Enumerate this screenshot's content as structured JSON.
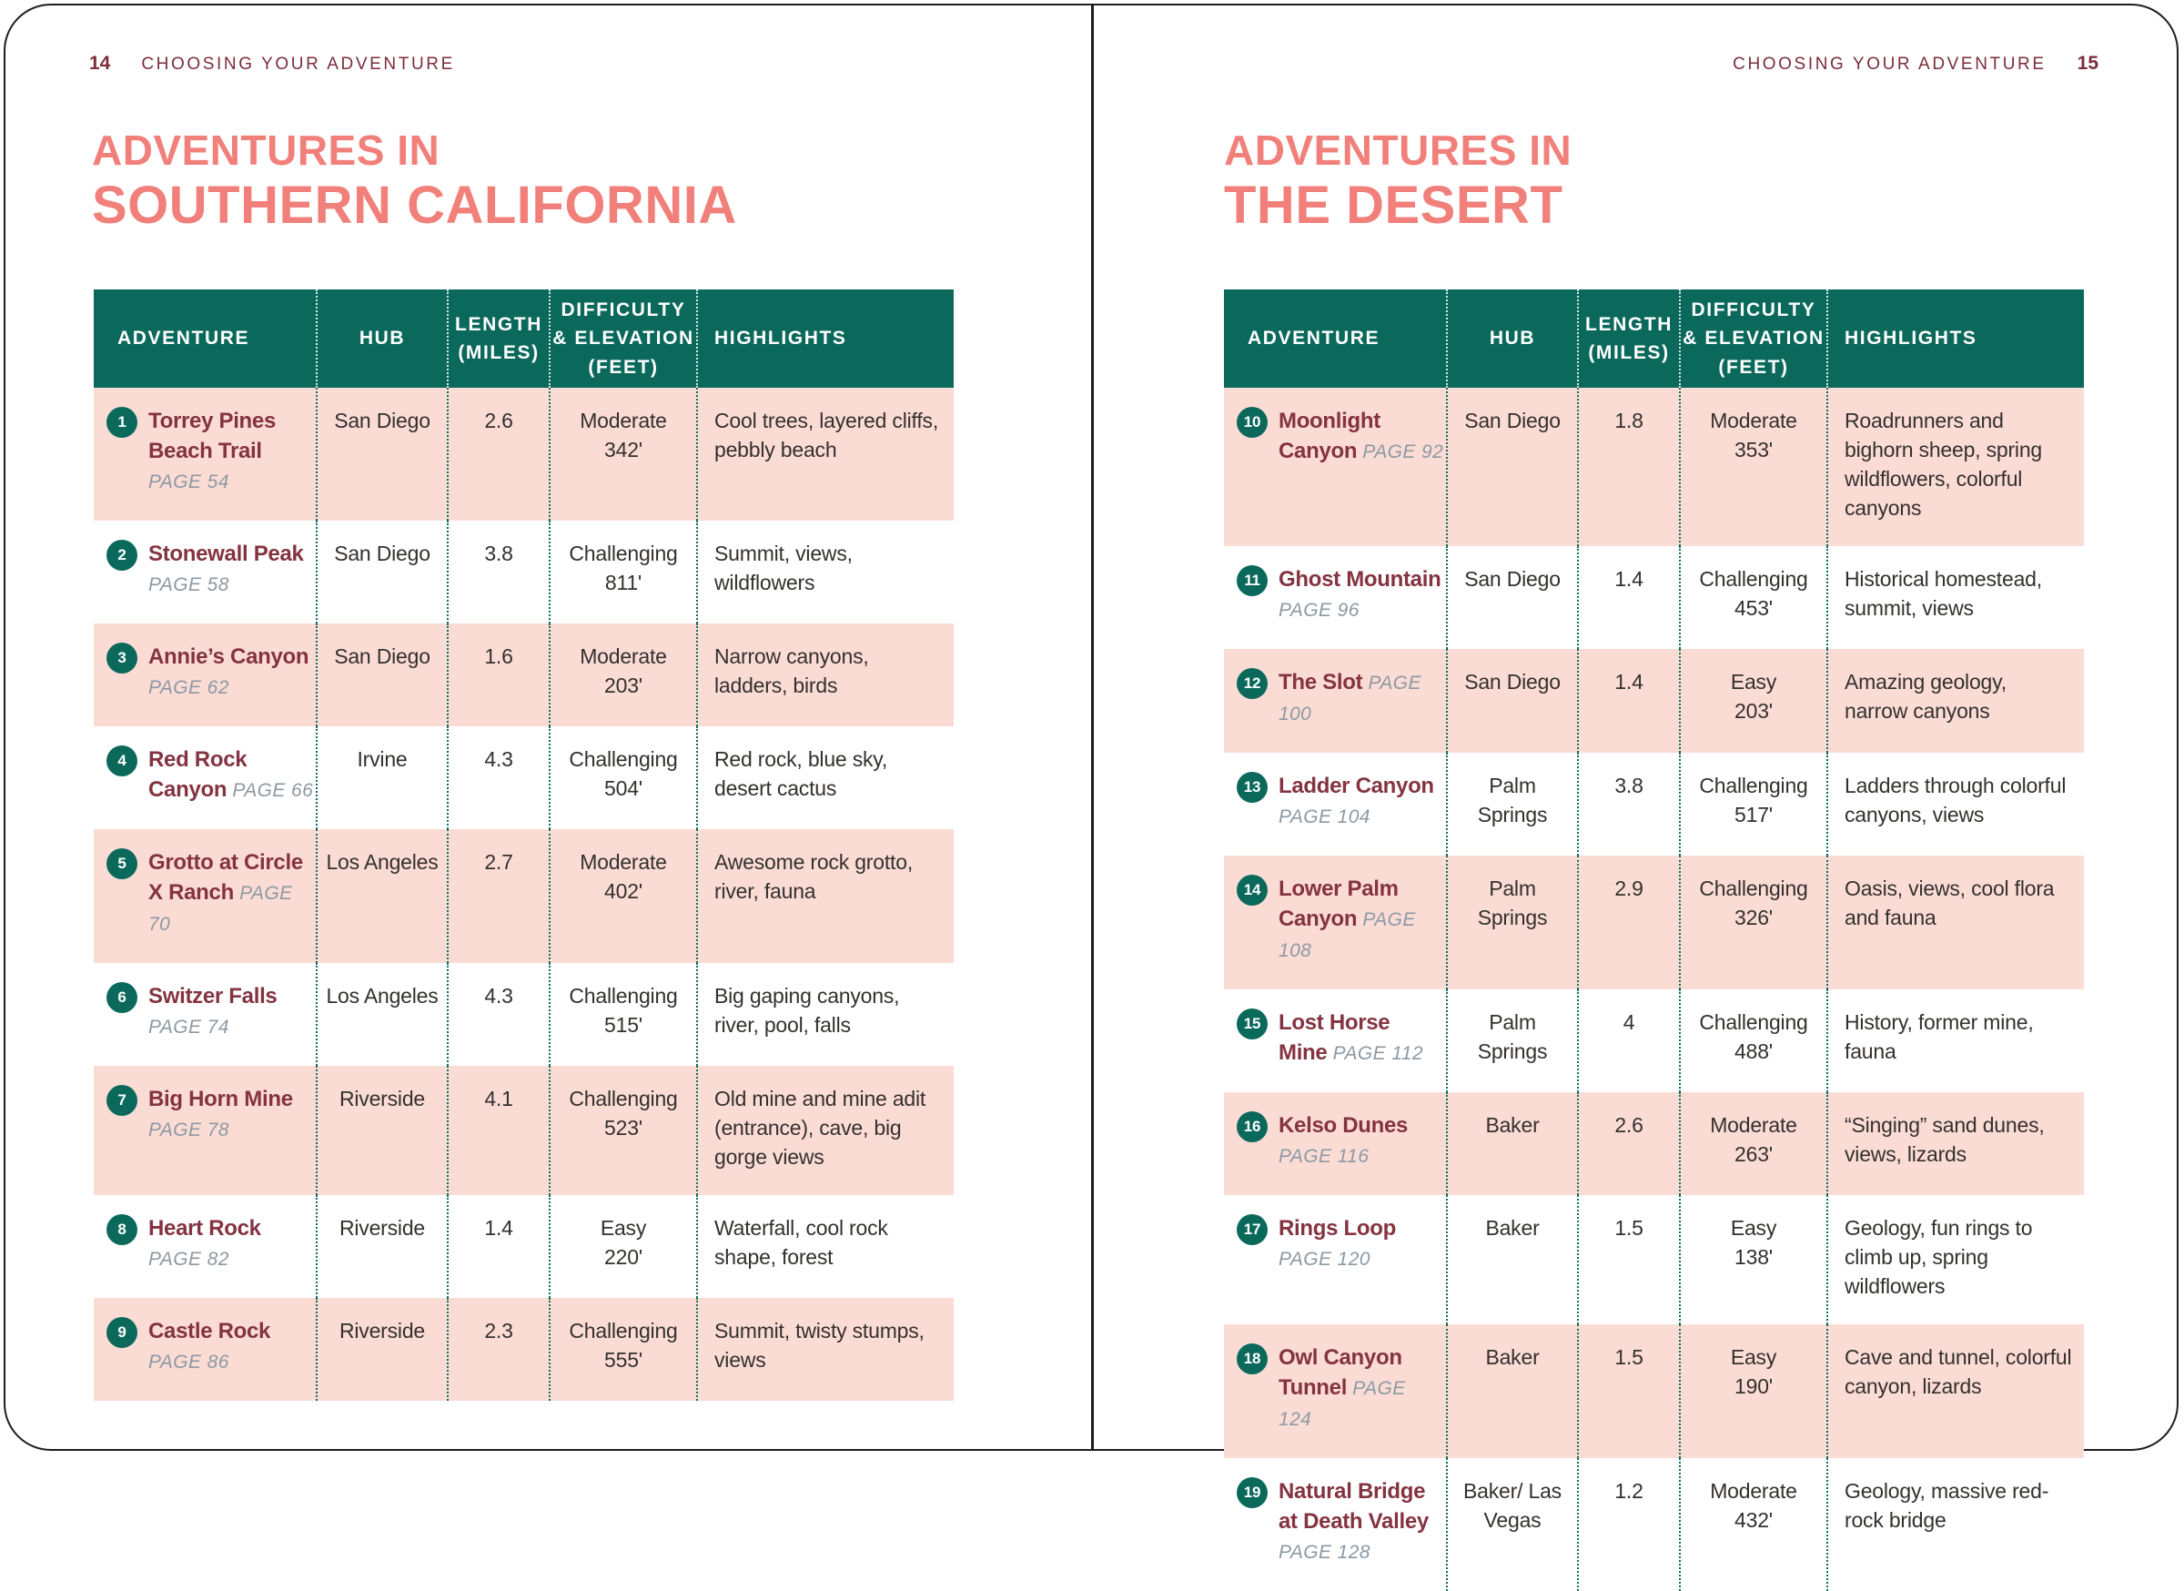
{
  "colors": {
    "teal_header": "#0b695c",
    "coral_title": "#f1807b",
    "maroon_name": "#843340",
    "maroon_running_header": "#7b2d3b",
    "pink_row": "#fbdcd5",
    "page_ref_gray": "#8c99a3",
    "body_text": "#34302e",
    "border_black": "#1d1d1b"
  },
  "table_headers": [
    [
      "ADVENTURE"
    ],
    [
      "HUB"
    ],
    [
      "LENGTH",
      "(MILES)"
    ],
    [
      "DIFFICULTY",
      "& ELEVATION",
      "(FEET)"
    ],
    [
      "HIGHLIGHTS"
    ]
  ],
  "left_page": {
    "page_number": "14",
    "running_header": "CHOOSING YOUR ADVENTURE",
    "title": [
      "ADVENTURES IN",
      "SOUTHERN CALIFORNIA"
    ],
    "rows": [
      {
        "num": "1",
        "name": "Torrey Pines Beach Trail",
        "page": "PAGE 54",
        "hub": "San Diego",
        "length": "2.6",
        "difficulty": "Moderate",
        "elevation": "342'",
        "highlights": "Cool trees, layered cliffs, pebbly beach"
      },
      {
        "num": "2",
        "name": "Stonewall Peak",
        "page": "PAGE 58",
        "hub": "San Diego",
        "length": "3.8",
        "difficulty": "Challenging",
        "elevation": "811'",
        "highlights": "Summit, views, wildflowers"
      },
      {
        "num": "3",
        "name": "Annie’s Canyon",
        "page": "PAGE 62",
        "hub": "San Diego",
        "length": "1.6",
        "difficulty": "Moderate",
        "elevation": "203'",
        "highlights": "Narrow canyons, ladders, birds"
      },
      {
        "num": "4",
        "name": "Red Rock Canyon",
        "page": "PAGE 66",
        "hub": "Irvine",
        "length": "4.3",
        "difficulty": "Challenging",
        "elevation": "504'",
        "highlights": "Red rock, blue sky, desert cactus"
      },
      {
        "num": "5",
        "name": "Grotto at Circle X Ranch",
        "page": "PAGE 70",
        "hub": "Los Angeles",
        "length": "2.7",
        "difficulty": "Moderate",
        "elevation": "402'",
        "highlights": "Awesome rock grotto, river, fauna"
      },
      {
        "num": "6",
        "name": "Switzer Falls",
        "page": "PAGE 74",
        "hub": "Los Angeles",
        "length": "4.3",
        "difficulty": "Challenging",
        "elevation": "515'",
        "highlights": "Big gaping canyons, river, pool, falls"
      },
      {
        "num": "7",
        "name": "Big Horn Mine",
        "page": "PAGE 78",
        "hub": "Riverside",
        "length": "4.1",
        "difficulty": "Challenging",
        "elevation": "523'",
        "highlights": "Old mine and mine adit (entrance), cave, big gorge views"
      },
      {
        "num": "8",
        "name": "Heart Rock",
        "page": "PAGE 82",
        "hub": "Riverside",
        "length": "1.4",
        "difficulty": "Easy",
        "elevation": "220'",
        "highlights": "Waterfall, cool rock shape, forest"
      },
      {
        "num": "9",
        "name": "Castle Rock",
        "page": "PAGE 86",
        "hub": "Riverside",
        "length": "2.3",
        "difficulty": "Challenging",
        "elevation": "555'",
        "highlights": "Summit, twisty stumps, views"
      }
    ]
  },
  "right_page": {
    "page_number": "15",
    "running_header": "CHOOSING YOUR ADVENTURE",
    "title": [
      "ADVENTURES IN",
      "THE DESERT"
    ],
    "rows": [
      {
        "num": "10",
        "name": "Moonlight Canyon",
        "page": "PAGE 92",
        "hub": "San Diego",
        "length": "1.8",
        "difficulty": "Moderate",
        "elevation": "353'",
        "highlights": "Roadrunners and bighorn sheep, spring wildflowers, colorful canyons"
      },
      {
        "num": "11",
        "name": "Ghost Mountain",
        "page": "PAGE 96",
        "hub": "San Diego",
        "length": "1.4",
        "difficulty": "Challenging",
        "elevation": "453'",
        "highlights": "Historical homestead, summit, views"
      },
      {
        "num": "12",
        "name": "The Slot",
        "page": "PAGE 100",
        "hub": "San Diego",
        "length": "1.4",
        "difficulty": "Easy",
        "elevation": "203'",
        "highlights": "Amazing geology, narrow canyons"
      },
      {
        "num": "13",
        "name": "Ladder Canyon",
        "page": "PAGE 104",
        "hub": "Palm Springs",
        "length": "3.8",
        "difficulty": "Challenging",
        "elevation": "517'",
        "highlights": "Ladders through colorful canyons, views"
      },
      {
        "num": "14",
        "name": "Lower Palm Canyon",
        "page": "PAGE 108",
        "hub": "Palm Springs",
        "length": "2.9",
        "difficulty": "Challenging",
        "elevation": "326'",
        "highlights": "Oasis, views, cool flora and fauna"
      },
      {
        "num": "15",
        "name": "Lost Horse Mine",
        "page": "PAGE 112",
        "hub": "Palm Springs",
        "length": "4",
        "difficulty": "Challenging",
        "elevation": "488'",
        "highlights": "History, former mine, fauna"
      },
      {
        "num": "16",
        "name": "Kelso Dunes",
        "page": "PAGE 116",
        "hub": "Baker",
        "length": "2.6",
        "difficulty": "Moderate",
        "elevation": "263'",
        "highlights": "“Singing” sand dunes, views, lizards"
      },
      {
        "num": "17",
        "name": "Rings Loop",
        "page": "PAGE 120",
        "hub": "Baker",
        "length": "1.5",
        "difficulty": "Easy",
        "elevation": "138'",
        "highlights": "Geology, fun rings to climb up, spring wildflowers"
      },
      {
        "num": "18",
        "name": "Owl Canyon Tunnel",
        "page": "PAGE 124",
        "hub": "Baker",
        "length": "1.5",
        "difficulty": "Easy",
        "elevation": "190'",
        "highlights": "Cave and tunnel, colorful canyon, lizards"
      },
      {
        "num": "19",
        "name": "Natural Bridge at Death Valley",
        "page": "PAGE 128",
        "hub": "Baker/ Las Vegas",
        "length": "1.2",
        "difficulty": "Moderate",
        "elevation": "432'",
        "highlights": "Geology, massive red-rock bridge"
      }
    ]
  }
}
